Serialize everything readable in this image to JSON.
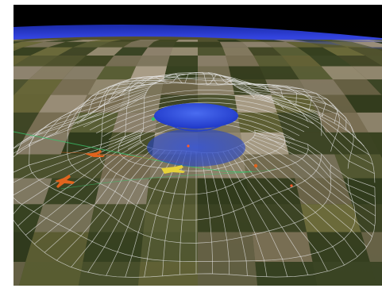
{
  "scene": {
    "description_free": true,
    "colors": {
      "sky": "#000000",
      "horizon_band": "#2a3bd6",
      "ground_dark": "#3a4a22",
      "ground_mid": "#6b6a3a",
      "ground_light": "#a89c86",
      "wireframe": "#e8e8e8",
      "dome_blue": "#2a4fe0",
      "aircraft_orange": "#e0641e",
      "aircraft_yellow": "#e6d23a",
      "trail_green": "#3ac06a"
    }
  }
}
